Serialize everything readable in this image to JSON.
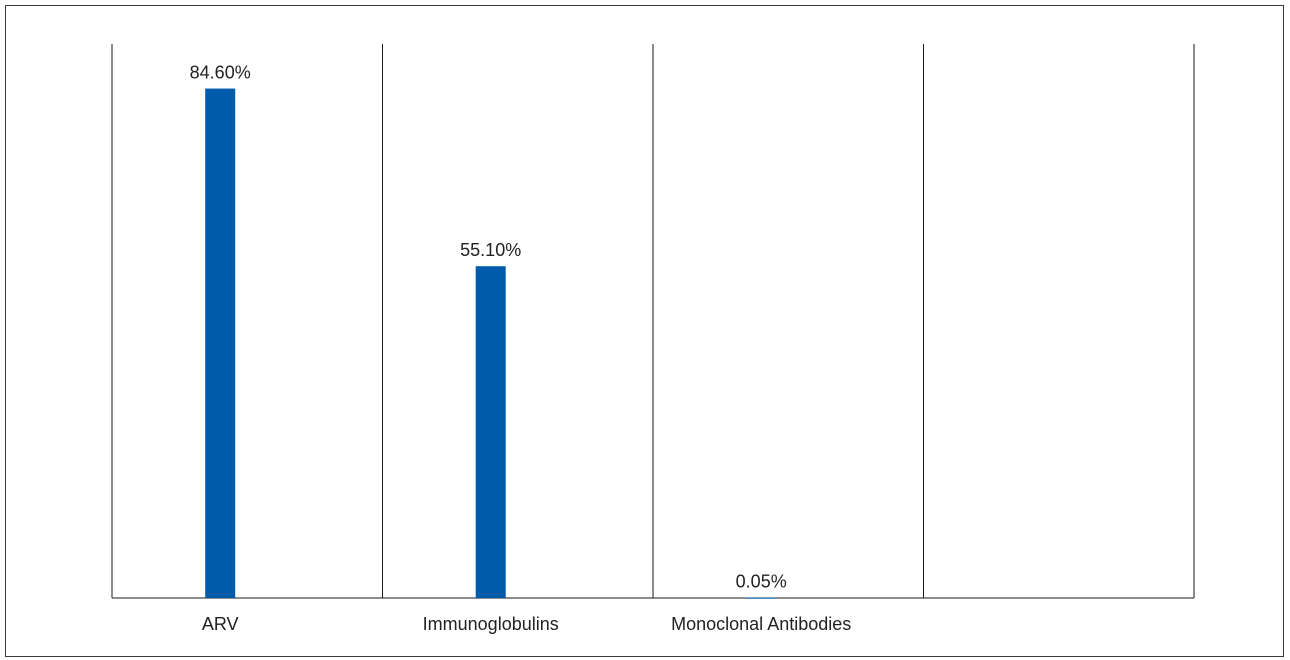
{
  "chart_data": {
    "type": "bar",
    "categories": [
      "ARV",
      "Immunoglobulins",
      "Monoclonal Antibodies",
      ""
    ],
    "values": [
      84.6,
      55.1,
      0.05,
      null
    ],
    "data_labels": [
      "84.60%",
      "55.10%",
      "0.05%",
      ""
    ],
    "ylim": [
      0,
      92
    ],
    "grid": "vertical category separators",
    "legend": "none",
    "bar_color": "#005BAA",
    "axis_color": "#1a1a1a"
  }
}
